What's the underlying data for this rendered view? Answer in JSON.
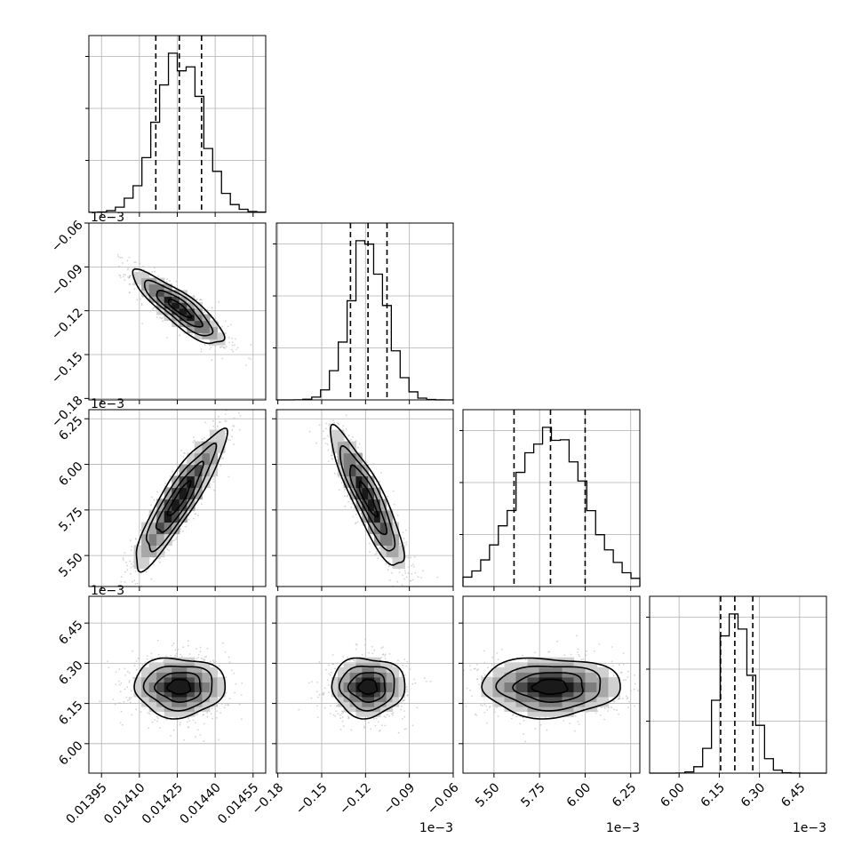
{
  "chart_data": {
    "type": "corner",
    "title": "",
    "grid": true,
    "colors": {
      "line": "#000000",
      "grid": "#b0b0b0",
      "scatter": "#b5b5b5",
      "density": [
        "#d0d0d0",
        "#a8a8a8",
        "#7d7d7d",
        "#4a4a4a",
        "#1a1a1a"
      ]
    },
    "parameters": [
      {
        "range": [
          0.0139,
          0.0146
        ],
        "ticks": [
          0.01395,
          0.0141,
          0.01425,
          0.0144,
          0.01455
        ],
        "tick_labels": [
          "0.01395",
          "0.01410",
          "0.01425",
          "0.01440",
          "0.01455"
        ],
        "offset_label": "",
        "quantiles": [
          0.014165,
          0.014258,
          0.014346
        ],
        "mean": 0.014258,
        "sd": 9e-05
      },
      {
        "range": [
          -0.181,
          -0.06
        ],
        "ticks": [
          -0.18,
          -0.15,
          -0.12,
          -0.09,
          -0.06
        ],
        "tick_labels": [
          "−0.18",
          "−0.15",
          "−0.12",
          "−0.09",
          "−0.06"
        ],
        "offset_label": "1e−3",
        "quantiles": [
          -0.1303,
          -0.1183,
          -0.1053
        ],
        "mean": -0.1183,
        "sd": 0.0125
      },
      {
        "range": [
          5.33,
          6.3
        ],
        "ticks": [
          5.5,
          5.75,
          6.0,
          6.25
        ],
        "tick_labels": [
          "5.50",
          "5.75",
          "6.00",
          "6.25"
        ],
        "offset_label": "1e−3",
        "quantiles": [
          5.61,
          5.81,
          6.0
        ],
        "mean": 5.81,
        "sd": 0.19
      },
      {
        "range": [
          5.89,
          6.55
        ],
        "ticks": [
          6.0,
          6.15,
          6.3,
          6.45
        ],
        "tick_labels": [
          "6.00",
          "6.15",
          "6.30",
          "6.45"
        ],
        "offset_label": "1e−3",
        "quantiles": [
          6.155,
          6.208,
          6.275
        ],
        "mean": 6.212,
        "sd": 0.055
      }
    ],
    "correlations": [
      {
        "pair": [
          1,
          0
        ],
        "rho": -0.86
      },
      {
        "pair": [
          2,
          0
        ],
        "rho": 0.9
      },
      {
        "pair": [
          2,
          1
        ],
        "rho": -0.88
      },
      {
        "pair": [
          3,
          0
        ],
        "rho": 0.0
      },
      {
        "pair": [
          3,
          1
        ],
        "rho": 0.0
      },
      {
        "pair": [
          3,
          2
        ],
        "rho": 0.0
      }
    ],
    "contour_levels_sigma": [
      0.5,
      1.0,
      1.5,
      2.0
    ]
  }
}
